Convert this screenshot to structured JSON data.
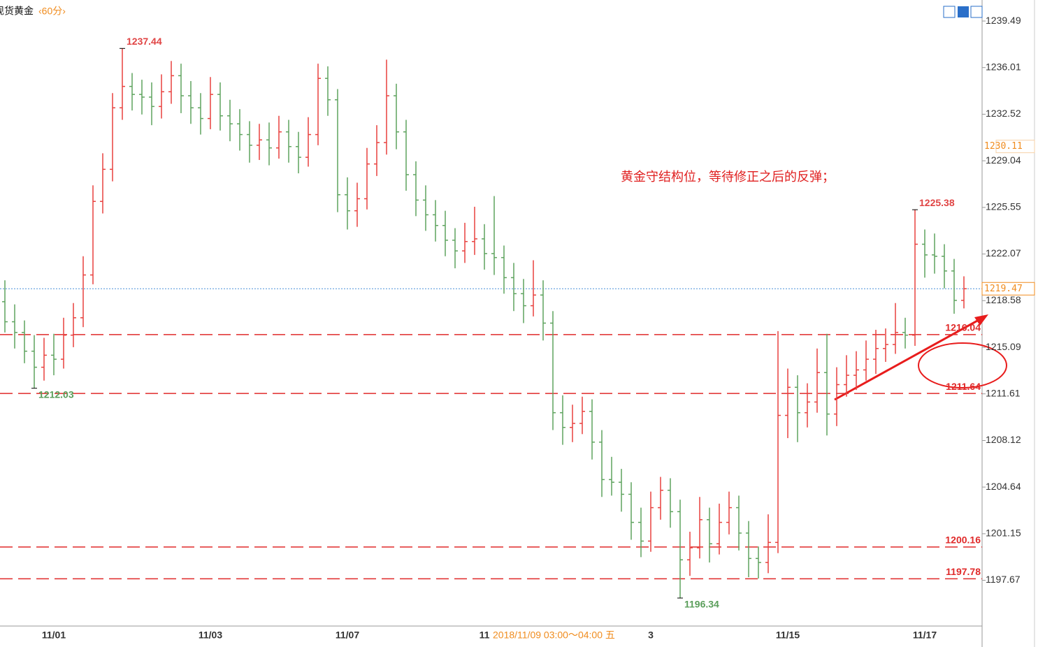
{
  "chart_data": {
    "type": "ohlc",
    "title": "现货黄金",
    "period": "‹60分›",
    "annotation": "黄金守结构位，等待修正之后的反弹；",
    "crosshair_label": "2018/11/09  03:00～04:00  五",
    "up_color": "#e8413e",
    "down_color": "#5ea35e",
    "level_color": "#e02a2a",
    "current_color": "#4a90d9",
    "marker_color": "#f08c1e",
    "ylim": [
      1194.3,
      1240.8
    ],
    "yticks": [
      1239.49,
      1236.01,
      1232.52,
      1229.04,
      1225.55,
      1222.07,
      1218.58,
      1215.09,
      1211.61,
      1208.12,
      1204.64,
      1201.15,
      1197.67
    ],
    "levels": [
      1216.04,
      1211.64,
      1200.16,
      1197.78
    ],
    "current_price": 1219.47,
    "marker_price": 1230.11,
    "categories": [
      null,
      null,
      null,
      null,
      null,
      "11/01",
      null,
      null,
      null,
      null,
      null,
      null,
      null,
      null,
      null,
      null,
      null,
      null,
      null,
      null,
      null,
      "11/03",
      null,
      null,
      null,
      null,
      null,
      null,
      null,
      null,
      null,
      null,
      null,
      null,
      null,
      "11/07",
      null,
      null,
      null,
      null,
      null,
      null,
      null,
      null,
      null,
      null,
      null,
      null,
      null,
      "11",
      null,
      null,
      null,
      null,
      null,
      null,
      null,
      null,
      null,
      null,
      null,
      null,
      null,
      null,
      null,
      null,
      "3",
      null,
      null,
      null,
      null,
      null,
      null,
      null,
      null,
      null,
      null,
      null,
      null,
      null,
      "11/15",
      null,
      null,
      null,
      null,
      null,
      null,
      null,
      null,
      null,
      null,
      null,
      null,
      null,
      "11/17",
      null,
      null,
      null,
      null
    ],
    "open": [
      1218.5,
      1217.0,
      1216.2,
      1214.8,
      1213.6,
      1214.5,
      1214.2,
      1216.0,
      1217.3,
      1220.5,
      1226.0,
      1228.4,
      1233.0,
      1234.6,
      1234.0,
      1233.8,
      1233.1,
      1234.2,
      1235.4,
      1233.9,
      1233.0,
      1232.2,
      1234.0,
      1232.4,
      1231.8,
      1231.0,
      1230.2,
      1230.6,
      1230.0,
      1231.2,
      1230.1,
      1229.3,
      1231.0,
      1235.2,
      1233.6,
      1226.5,
      1225.3,
      1226.2,
      1228.8,
      1230.4,
      1233.9,
      1231.2,
      1228.0,
      1226.1,
      1225.0,
      1224.2,
      1223.1,
      1222.3,
      1223.0,
      1223.2,
      1222.1,
      1221.8,
      1220.3,
      1219.1,
      1218.2,
      1219.0,
      1216.9,
      1210.2,
      1209.1,
      1209.4,
      1210.3,
      1208.0,
      1205.2,
      1205.0,
      1204.1,
      1202.0,
      1200.6,
      1203.1,
      1204.4,
      1202.8,
      1199.2,
      1200.1,
      1202.2,
      1200.4,
      1202.0,
      1203.1,
      1201.2,
      1199.3,
      1199.0,
      1200.5,
      1210.0,
      1212.1,
      1210.2,
      1211.0,
      1213.2,
      1210.1,
      1212.3,
      1213.0,
      1213.4,
      1214.2,
      1215.0,
      1215.3,
      1216.2,
      1216.0,
      1222.8,
      1222.0,
      1221.9,
      1220.8,
      1218.6
    ],
    "high": [
      1220.1,
      1218.3,
      1217.1,
      1216.0,
      1215.8,
      1216.1,
      1217.3,
      1218.4,
      1221.9,
      1227.2,
      1229.6,
      1234.1,
      1237.44,
      1235.6,
      1235.1,
      1234.9,
      1235.5,
      1236.5,
      1236.3,
      1235.0,
      1234.1,
      1235.3,
      1234.9,
      1233.6,
      1232.9,
      1232.0,
      1231.8,
      1231.9,
      1232.4,
      1232.1,
      1231.2,
      1232.3,
      1236.3,
      1236.1,
      1234.4,
      1227.8,
      1227.4,
      1230.0,
      1231.7,
      1236.6,
      1234.8,
      1232.1,
      1229.0,
      1227.2,
      1226.1,
      1225.3,
      1224.0,
      1224.4,
      1225.6,
      1224.3,
      1226.4,
      1222.7,
      1221.4,
      1220.2,
      1221.6,
      1220.1,
      1217.8,
      1211.5,
      1210.8,
      1211.4,
      1211.2,
      1208.9,
      1206.9,
      1206.0,
      1205.0,
      1203.1,
      1204.3,
      1205.4,
      1205.3,
      1203.7,
      1201.3,
      1203.9,
      1203.1,
      1203.4,
      1204.3,
      1204.0,
      1202.1,
      1200.2,
      1202.6,
      1216.3,
      1213.5,
      1213.0,
      1212.4,
      1215.0,
      1216.1,
      1213.6,
      1214.5,
      1214.8,
      1215.6,
      1216.4,
      1216.5,
      1218.4,
      1217.3,
      1225.38,
      1223.9,
      1223.6,
      1222.8,
      1221.7,
      1220.4
    ],
    "low": [
      1216.2,
      1215.0,
      1213.9,
      1212.03,
      1212.6,
      1213.0,
      1213.5,
      1215.1,
      1216.6,
      1219.8,
      1225.1,
      1227.5,
      1232.1,
      1232.8,
      1232.5,
      1231.7,
      1232.2,
      1233.3,
      1232.6,
      1231.8,
      1231.0,
      1231.4,
      1231.3,
      1230.5,
      1229.8,
      1228.9,
      1229.1,
      1228.7,
      1229.2,
      1228.9,
      1228.1,
      1228.6,
      1230.2,
      1232.4,
      1225.2,
      1223.9,
      1224.1,
      1225.4,
      1227.9,
      1229.5,
      1229.9,
      1226.8,
      1224.9,
      1223.8,
      1223.0,
      1221.9,
      1221.0,
      1221.4,
      1222.0,
      1220.9,
      1220.5,
      1219.1,
      1217.8,
      1216.9,
      1217.4,
      1215.6,
      1208.9,
      1207.8,
      1208.0,
      1208.6,
      1206.7,
      1203.9,
      1204.0,
      1202.8,
      1200.7,
      1199.4,
      1199.8,
      1202.2,
      1201.6,
      1196.34,
      1198.0,
      1199.3,
      1199.0,
      1199.6,
      1201.1,
      1199.9,
      1197.9,
      1197.8,
      1198.2,
      1199.7,
      1208.3,
      1208.0,
      1209.1,
      1210.2,
      1208.5,
      1209.2,
      1211.4,
      1211.9,
      1212.6,
      1213.1,
      1214.0,
      1214.6,
      1215.0,
      1215.2,
      1220.3,
      1220.6,
      1219.5,
      1217.6,
      1218.0
    ],
    "close": [
      1217.0,
      1216.2,
      1214.8,
      1213.6,
      1214.5,
      1214.2,
      1216.0,
      1217.3,
      1220.5,
      1226.0,
      1228.4,
      1233.0,
      1234.6,
      1234.0,
      1233.8,
      1233.1,
      1234.2,
      1235.4,
      1233.9,
      1233.0,
      1232.2,
      1234.0,
      1232.4,
      1231.8,
      1231.0,
      1230.2,
      1230.6,
      1230.0,
      1231.2,
      1230.1,
      1229.3,
      1231.0,
      1235.2,
      1233.6,
      1226.5,
      1225.3,
      1226.2,
      1228.8,
      1230.4,
      1233.9,
      1231.2,
      1228.0,
      1226.1,
      1225.0,
      1224.2,
      1223.1,
      1222.3,
      1223.0,
      1223.2,
      1222.1,
      1221.8,
      1220.3,
      1219.1,
      1218.2,
      1219.0,
      1216.9,
      1210.2,
      1209.1,
      1209.4,
      1210.3,
      1208.0,
      1205.2,
      1205.0,
      1204.1,
      1202.0,
      1200.6,
      1203.1,
      1204.4,
      1202.8,
      1199.2,
      1200.1,
      1202.2,
      1200.4,
      1202.0,
      1203.1,
      1201.2,
      1199.3,
      1199.0,
      1200.5,
      1210.0,
      1212.1,
      1210.2,
      1211.0,
      1213.2,
      1210.1,
      1212.3,
      1213.0,
      1213.4,
      1214.2,
      1215.0,
      1215.3,
      1216.2,
      1216.0,
      1222.8,
      1222.0,
      1221.9,
      1220.8,
      1218.6,
      1219.47
    ]
  }
}
